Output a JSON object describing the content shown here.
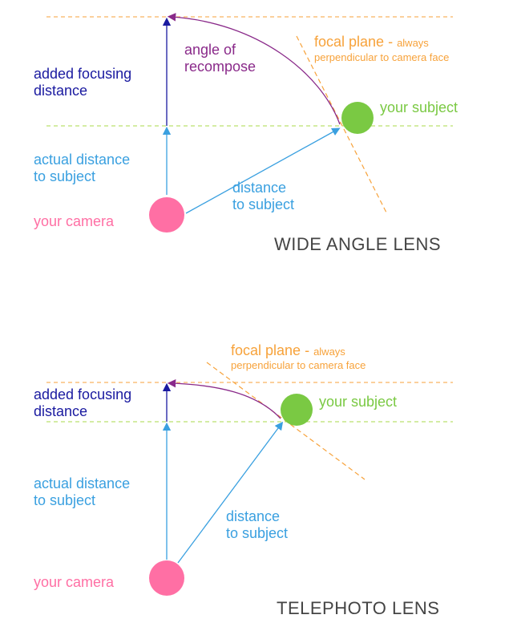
{
  "colors": {
    "camera": "#ff6fa4",
    "subject": "#7ac943",
    "added_distance": "#1a1aa0",
    "actual_distance": "#3aa0e0",
    "angle": "#8a2a8a",
    "focal_plane": "#f7a23a",
    "guide_top": "#f7a23a",
    "guide_mid": "#a8d84a",
    "title": "#444444"
  },
  "wide": {
    "title": "WIDE ANGLE LENS",
    "added_label": [
      "added focusing",
      "distance"
    ],
    "actual_label": [
      "actual distance",
      "to subject"
    ],
    "camera_label": "your camera",
    "distance_label": [
      "distance",
      "to subject"
    ],
    "angle_label": [
      "angle of",
      "recompose"
    ],
    "focal_label": "focal plane - ",
    "focal_label_small_1": "always",
    "focal_label_small_2": "perpendicular to camera face",
    "subject_label": "your subject"
  },
  "tele": {
    "title": "TELEPHOTO LENS",
    "added_label": [
      "added focusing",
      "distance"
    ],
    "actual_label": [
      "actual distance",
      "to subject"
    ],
    "camera_label": "your camera",
    "distance_label": [
      "distance",
      "to subject"
    ],
    "focal_label": "focal plane - ",
    "focal_label_small_1": "always",
    "focal_label_small_2": "perpendicular to camera face",
    "subject_label": "your subject"
  }
}
